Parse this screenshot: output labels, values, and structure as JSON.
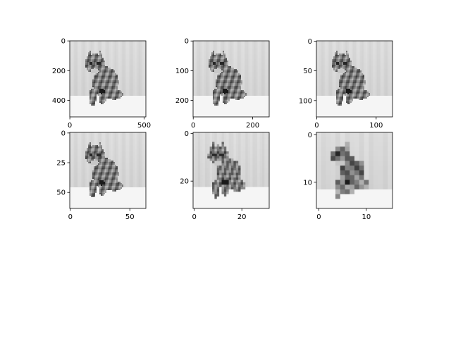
{
  "figure": {
    "panels": [
      {
        "size": 512,
        "xticks": [
          "0",
          "500"
        ],
        "yticks": [
          "0",
          "200",
          "400"
        ]
      },
      {
        "size": 256,
        "xticks": [
          "0",
          "200"
        ],
        "yticks": [
          "0",
          "100",
          "200"
        ]
      },
      {
        "size": 128,
        "xticks": [
          "0",
          "100"
        ],
        "yticks": [
          "0",
          "50",
          "100"
        ]
      },
      {
        "size": 64,
        "xticks": [
          "0",
          "50"
        ],
        "yticks": [
          "0",
          "25",
          "50"
        ]
      },
      {
        "size": 32,
        "xticks": [
          "0",
          "20"
        ],
        "yticks": [
          "0",
          "20"
        ]
      },
      {
        "size": 16,
        "xticks": [
          "0",
          "10"
        ],
        "yticks": [
          "0",
          "10"
        ]
      }
    ],
    "colors": {
      "frame": "#000000",
      "background_light": "#d8d8d8",
      "floor": "#f6f6f6"
    }
  }
}
